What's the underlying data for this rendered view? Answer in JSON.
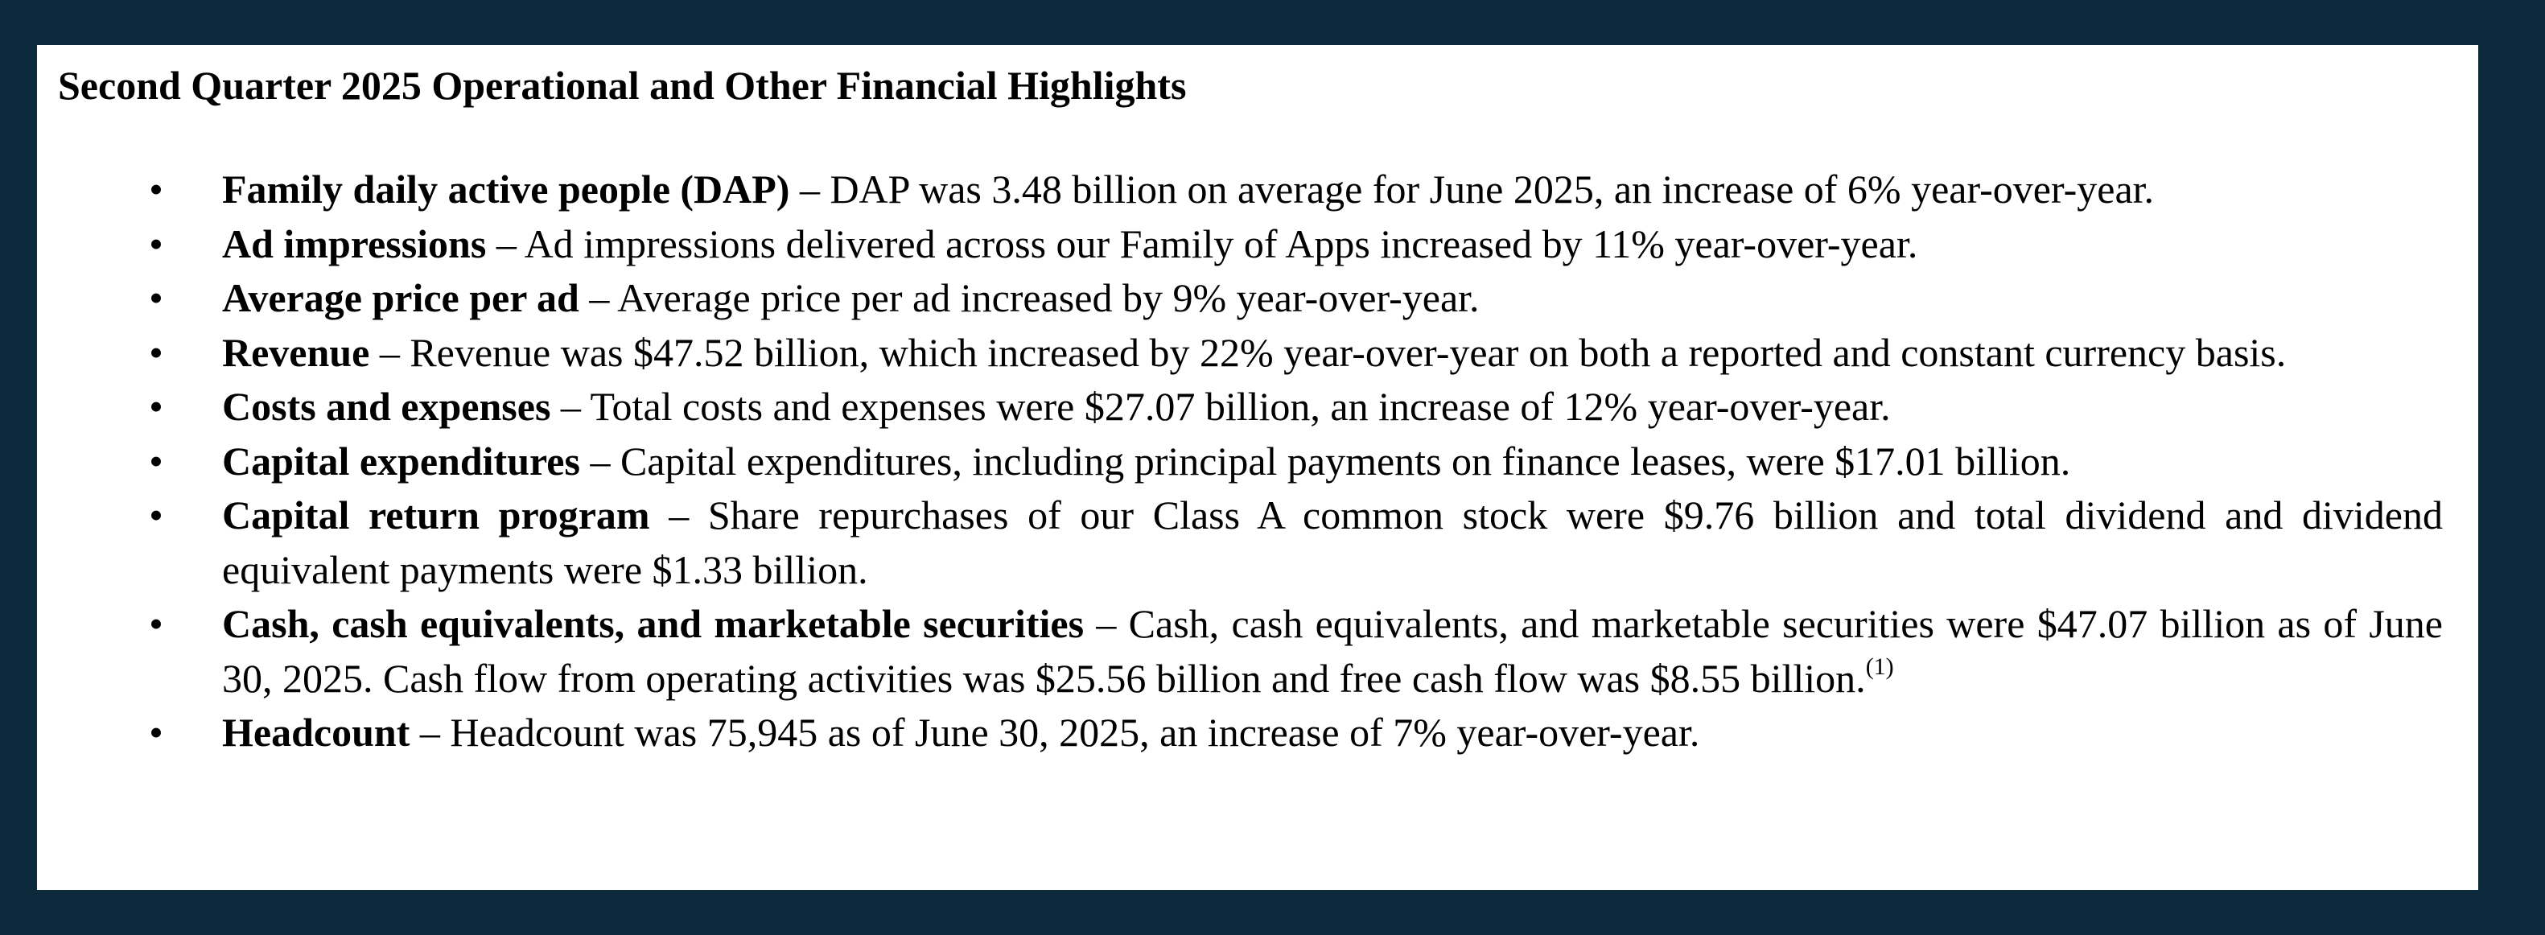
{
  "title": "Second Quarter 2025 Operational and Other Financial Highlights",
  "bullet_symbol": "•",
  "items": [
    {
      "term": "Family daily active people (DAP)",
      "text": " – DAP was 3.48 billion on average for June 2025, an increase of 6% year-over-year."
    },
    {
      "term": "Ad impressions",
      "text": " – Ad impressions delivered across our Family of Apps increased by 11% year-over-year."
    },
    {
      "term": "Average price per ad",
      "text": " – Average price per ad increased by 9% year-over-year."
    },
    {
      "term": "Revenue",
      "text": " – Revenue was $47.52 billion, which increased by 22% year-over-year on both a reported and constant currency basis."
    },
    {
      "term": "Costs and expenses",
      "text": " – Total costs and expenses were $27.07 billion, an increase of 12% year-over-year."
    },
    {
      "term": "Capital expenditures",
      "text": " – Capital expenditures, including principal payments on finance leases, were $17.01 billion."
    },
    {
      "term": "Capital return program",
      "text": " – Share repurchases of our Class A common stock were $9.76 billion and total dividend and dividend equivalent payments were $1.33 billion."
    },
    {
      "term": "Cash, cash equivalents, and marketable securities",
      "text": " – Cash, cash equivalents, and marketable securities were $47.07 billion as of June 30, 2025. Cash flow from operating activities was $25.56 billion and free cash flow was $8.55 billion.",
      "footnote": "(1)"
    },
    {
      "term": "Headcount",
      "text": " – Headcount was 75,945 as of June 30, 2025, an increase of 7% year-over-year."
    }
  ]
}
